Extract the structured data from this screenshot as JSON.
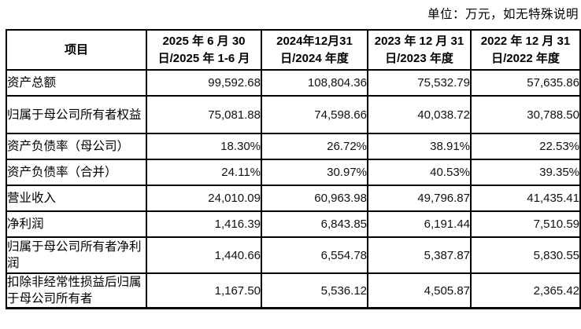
{
  "unit_note": "单位：万元，如无特殊说明",
  "colors": {
    "border": "#000000",
    "text": "#000000",
    "background": "#ffffff"
  },
  "table": {
    "header": [
      "项目",
      "2025 年 6 月 30\n日/2025 年 1-6 月",
      "2024年12月31\n日/2024 年度",
      "2023 年 12 月 31\n日/2023 年度",
      "2022 年 12 月 31\n日/2022 年度"
    ],
    "rows": [
      {
        "label": "资产总额",
        "values": [
          "99,592.68",
          "108,804.36",
          "75,532.79",
          "57,635.86"
        ]
      },
      {
        "label": "归属于母公司所有者权益",
        "values": [
          "75,081.88",
          "74,598.66",
          "40,038.72",
          "30,788.50"
        ]
      },
      {
        "label": "资产负债率（母公司）",
        "values": [
          "18.30%",
          "26.72%",
          "38.91%",
          "22.53%"
        ]
      },
      {
        "label": "资产负债率（合并）",
        "values": [
          "24.11%",
          "30.97%",
          "40.53%",
          "39.35%"
        ]
      },
      {
        "label": "营业收入",
        "values": [
          "24,010.09",
          "60,963.98",
          "49,796.87",
          "41,435.41"
        ]
      },
      {
        "label": "净利润",
        "values": [
          "1,416.39",
          "6,843.85",
          "6,191.44",
          "7,510.59"
        ]
      },
      {
        "label": "归属于母公司所有者净利润",
        "values": [
          "1,440.66",
          "6,554.78",
          "5,387.87",
          "5,830.55"
        ]
      },
      {
        "label": "扣除非经常性损益后归属于母公司所有者",
        "values": [
          "1,167.50",
          "5,536.12",
          "4,505.87",
          "2,365.42"
        ]
      }
    ]
  }
}
